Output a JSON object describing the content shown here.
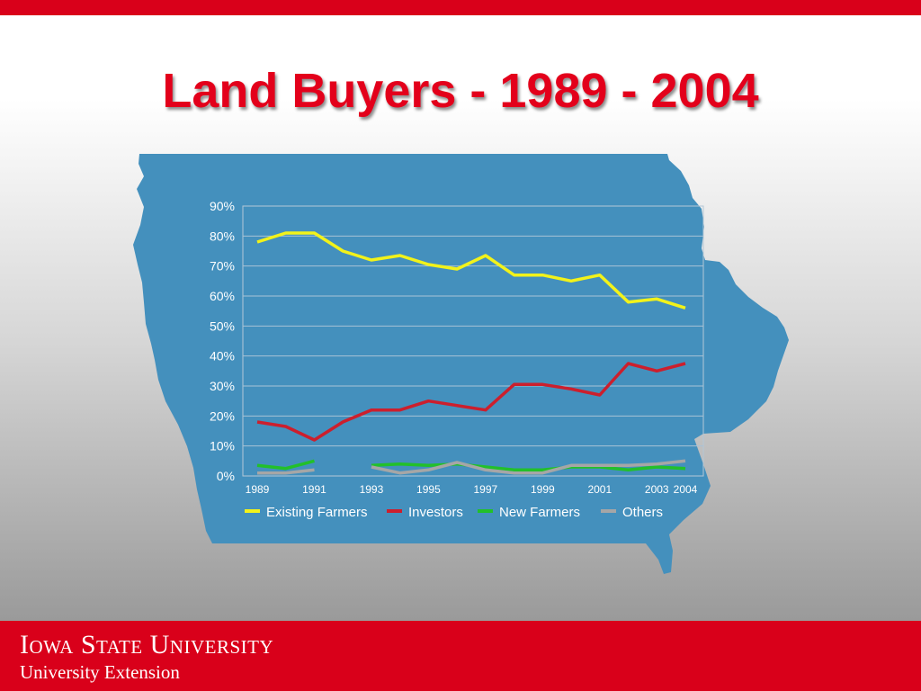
{
  "slide": {
    "title": "Land Buyers - 1989 - 2004"
  },
  "footer": {
    "university": "Iowa State University",
    "extension": "University Extension"
  },
  "colors": {
    "brand_red": "#d9001a",
    "map_blue": "#4490bd",
    "existing_farmers": "#f2f21a",
    "investors": "#cc1f2d",
    "new_farmers": "#22c02a",
    "others": "#a6a6a6"
  },
  "chart_data": {
    "type": "line",
    "x": [
      1989,
      1990,
      1991,
      1992,
      1993,
      1994,
      1995,
      1996,
      1997,
      1998,
      1999,
      2000,
      2001,
      2002,
      2003,
      2004
    ],
    "x_tick_labels": [
      "1989",
      "1991",
      "1993",
      "1995",
      "1997",
      "1999",
      "2001",
      "2003",
      "2004"
    ],
    "x_tick_years": [
      1989,
      1991,
      1993,
      1995,
      1997,
      1999,
      2001,
      2003,
      2004
    ],
    "ylim": [
      0,
      90
    ],
    "y_ticks": [
      0,
      10,
      20,
      30,
      40,
      50,
      60,
      70,
      80,
      90
    ],
    "y_tick_labels": [
      "0%",
      "10%",
      "20%",
      "30%",
      "40%",
      "50%",
      "60%",
      "70%",
      "80%",
      "90%"
    ],
    "grid": true,
    "legend_position": "bottom",
    "series": [
      {
        "name": "Existing Farmers",
        "color": "#f2f21a",
        "values": [
          78,
          81,
          81,
          75,
          72,
          73.5,
          70.5,
          69,
          73.5,
          67,
          67,
          65,
          67,
          58,
          59,
          56
        ]
      },
      {
        "name": "Investors",
        "color": "#cc1f2d",
        "values": [
          18,
          16.5,
          12,
          18,
          22,
          22,
          25,
          23.5,
          22,
          30.5,
          30.5,
          29,
          27,
          37.5,
          35,
          37.5
        ]
      },
      {
        "name": "New Farmers",
        "color": "#22c02a",
        "values": [
          3.5,
          2.5,
          5,
          null,
          3.5,
          4,
          3.5,
          4,
          3,
          2,
          2,
          3,
          3,
          2,
          3,
          2.5
        ]
      },
      {
        "name": "Others",
        "color": "#a6a6a6",
        "values": [
          1,
          1,
          2,
          null,
          3,
          1,
          2,
          4.5,
          2,
          1,
          1,
          3.5,
          3.5,
          3.5,
          4,
          5
        ]
      }
    ]
  }
}
